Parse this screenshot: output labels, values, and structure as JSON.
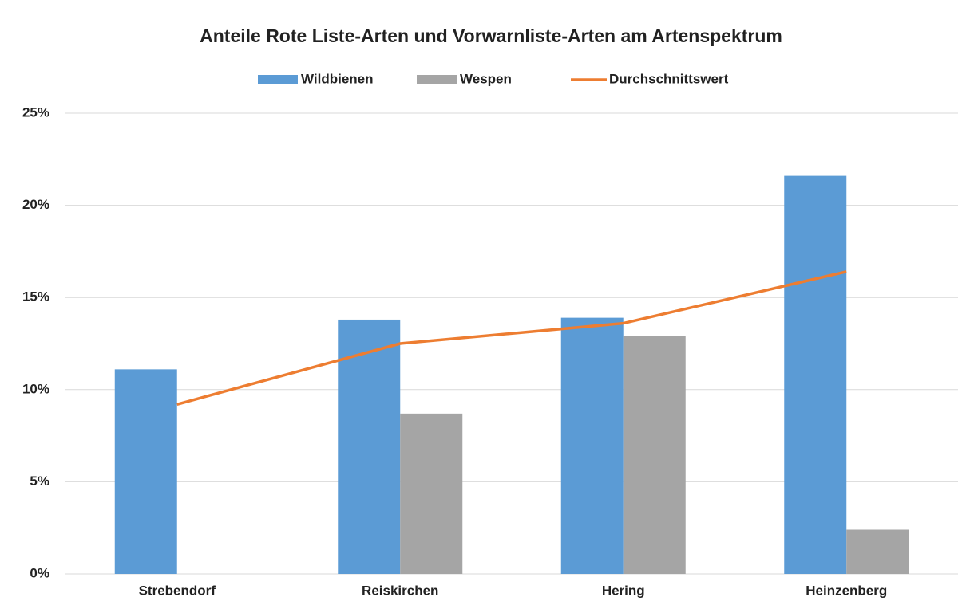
{
  "chart_data": {
    "type": "bar",
    "title": "Anteile Rote Liste-Arten und Vorwarnliste-Arten am Artenspektrum",
    "categories": [
      "Strebendorf",
      "Reiskirchen",
      "Hering",
      "Heinzenberg"
    ],
    "series": [
      {
        "name": "Wildbienen",
        "color": "#5b9bd5",
        "values": [
          11.1,
          13.8,
          13.9,
          21.6
        ]
      },
      {
        "name": "Wespen",
        "color": "#a5a5a5",
        "values": [
          0,
          8.7,
          12.9,
          2.4
        ]
      },
      {
        "name": "Durchschnittswert",
        "type": "line",
        "color": "#ed7d31",
        "values": [
          9.2,
          12.5,
          13.6,
          16.4
        ]
      }
    ],
    "ylim": [
      0,
      25
    ],
    "yticks": [
      {
        "value": 0,
        "label": "0%"
      },
      {
        "value": 5,
        "label": "5%"
      },
      {
        "value": 10,
        "label": "10%"
      },
      {
        "value": 15,
        "label": "15%"
      },
      {
        "value": 20,
        "label": "20%"
      },
      {
        "value": 25,
        "label": "25%"
      }
    ],
    "grid": true,
    "legend": "top"
  }
}
